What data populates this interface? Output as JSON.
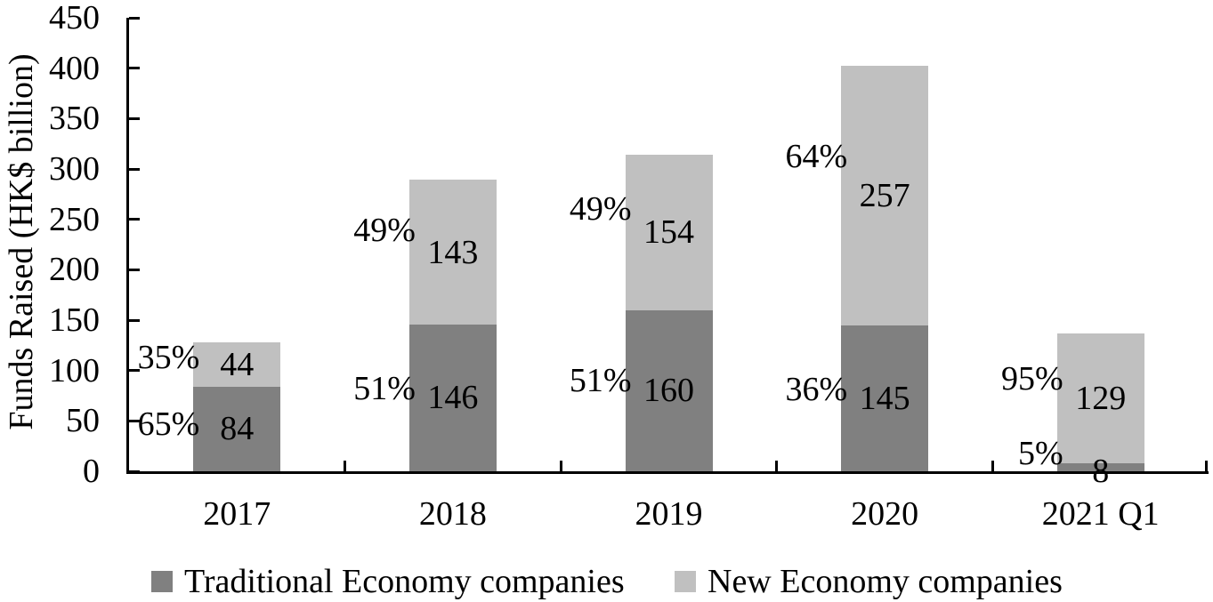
{
  "chart_data": {
    "type": "bar",
    "stacked": true,
    "title": "",
    "xlabel": "",
    "ylabel": "Funds Raised (HK$ billion)",
    "categories": [
      "2017",
      "2018",
      "2019",
      "2020",
      "2021 Q1"
    ],
    "series": [
      {
        "name": "Traditional Economy companies",
        "color": "#808080",
        "values": [
          84,
          146,
          160,
          145,
          8
        ],
        "pct_labels": [
          "65%",
          "51%",
          "51%",
          "36%",
          "5%"
        ]
      },
      {
        "name": "New Economy companies",
        "color": "#c0c0c0",
        "values": [
          44,
          143,
          154,
          257,
          129
        ],
        "pct_labels": [
          "35%",
          "49%",
          "49%",
          "64%",
          "95%"
        ]
      }
    ],
    "totals": [
      128,
      289,
      314,
      402,
      137
    ],
    "ylim": [
      0,
      450
    ],
    "ytick_step": 50,
    "yticks": [
      0,
      50,
      100,
      150,
      200,
      250,
      300,
      350,
      400,
      450
    ],
    "grid": false,
    "legend_position": "bottom",
    "axis_color": "#000000",
    "text_color": "#000000",
    "background_color": "#ffffff"
  }
}
